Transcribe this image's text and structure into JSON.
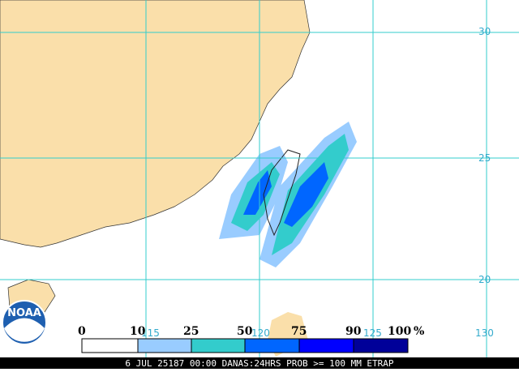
{
  "map": {
    "lat_labels": [
      "30",
      "25",
      "20"
    ],
    "lon_labels": [
      "115",
      "120",
      "125",
      "130"
    ],
    "legend": {
      "labels": [
        "0",
        "10",
        "25",
        "50",
        "75",
        "90",
        "100"
      ],
      "unit": "%"
    },
    "logo": "NOAA",
    "caption": "6 JUL 25187 00:00 DANAS:24HRS PROB >= 100 MM ETRAP"
  }
}
